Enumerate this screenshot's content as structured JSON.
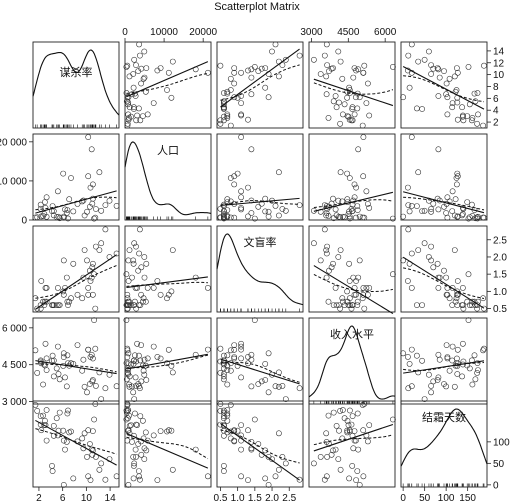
{
  "chart_data": {
    "type": "scatter",
    "title": "Scatterplot Matrix",
    "variables": [
      {
        "name": "谋杀率",
        "ticks": [
          2,
          6,
          10,
          14
        ],
        "tick_side": "bottom",
        "right_ticks": [
          2,
          4,
          6,
          8,
          10,
          12,
          14
        ]
      },
      {
        "name": "人口",
        "ticks": [
          0,
          10000,
          20000
        ],
        "tick_labels": [
          "0",
          "10000",
          "20000"
        ],
        "left_ticks": [
          0,
          10000,
          20000
        ],
        "left_tick_labels": [
          "0",
          "10 000",
          "20 000"
        ]
      },
      {
        "name": "文盲率",
        "ticks": [
          0.5,
          1.5,
          2.5
        ],
        "right_ticks": [
          0.5,
          1.0,
          1.5,
          2.0,
          2.5
        ],
        "right_tick_labels": [
          "0.5",
          "1.0",
          "1.5",
          "2.0",
          "2.5"
        ],
        "bottom_ticks": [
          0.5,
          1.0,
          1.5,
          2.0,
          2.5
        ],
        "bottom_tick_labels": [
          "0.5",
          "1.0",
          "1.5",
          "2.0",
          "2.5"
        ]
      },
      {
        "name": "收入水平",
        "ticks": [
          3000,
          4500,
          6000
        ],
        "tick_labels": [
          "3000",
          "4500",
          "6000"
        ],
        "left_tick_labels": [
          "3 000",
          "4 500",
          "6 000"
        ]
      },
      {
        "name": "结霜天数",
        "ticks": [
          0,
          50,
          100,
          150
        ],
        "right_ticks": [
          0,
          50,
          100
        ],
        "bottom_ticks": [
          0,
          50,
          100,
          150
        ]
      }
    ],
    "ranges": [
      [
        1.0,
        15.5
      ],
      [
        0,
        22000
      ],
      [
        0.4,
        2.9
      ],
      [
        2900,
        6400
      ],
      [
        -5,
        195
      ]
    ],
    "murder": [
      15.1,
      11.3,
      7.8,
      10.1,
      10.3,
      6.8,
      3.1,
      6.2,
      10.7,
      13.9,
      6.2,
      5.3,
      10.3,
      7.1,
      2.3,
      4.5,
      10.6,
      13.2,
      2.7,
      8.5,
      3.3,
      11.1,
      2.3,
      12.5,
      9.3,
      5.0,
      2.9,
      11.5,
      3.3,
      5.2,
      9.7,
      10.9,
      11.1,
      1.4,
      7.4,
      6.4,
      4.2,
      6.1,
      2.4,
      11.6,
      1.7,
      11.0,
      12.2,
      4.5,
      5.5,
      9.5,
      4.3,
      6.7,
      3.0,
      6.9
    ],
    "population": [
      3615,
      365,
      2212,
      2110,
      21198,
      2541,
      3100,
      579,
      8277,
      4931,
      868,
      813,
      11197,
      5313,
      2861,
      2280,
      3387,
      3806,
      1058,
      4122,
      5814,
      9111,
      3921,
      2341,
      4767,
      746,
      1544,
      590,
      812,
      7333,
      1144,
      18076,
      5441,
      637,
      10735,
      2715,
      2284,
      11860,
      931,
      2816,
      681,
      4173,
      12237,
      1203,
      472,
      4981,
      3559,
      1799,
      4589,
      376
    ],
    "illiteracy": [
      2.1,
      1.5,
      1.8,
      1.9,
      1.1,
      0.7,
      1.1,
      0.9,
      1.3,
      2.0,
      1.9,
      0.6,
      0.9,
      0.7,
      0.5,
      0.6,
      1.6,
      2.8,
      0.7,
      0.9,
      1.1,
      0.9,
      0.6,
      2.4,
      0.8,
      0.6,
      0.6,
      0.5,
      0.7,
      1.1,
      2.2,
      1.4,
      1.8,
      0.8,
      0.8,
      1.1,
      0.6,
      1.0,
      1.3,
      2.3,
      0.5,
      1.7,
      2.2,
      0.6,
      0.6,
      1.4,
      0.6,
      1.4,
      0.7,
      0.6
    ],
    "income": [
      3624,
      6315,
      4530,
      3378,
      5114,
      4884,
      5348,
      4809,
      4815,
      4091,
      4963,
      4119,
      5107,
      4458,
      4628,
      4669,
      3712,
      3545,
      3694,
      5299,
      4755,
      4751,
      4675,
      3098,
      4254,
      4347,
      4508,
      5149,
      4281,
      5237,
      3601,
      4903,
      3875,
      5087,
      4561,
      3983,
      4660,
      4449,
      4558,
      3635,
      4167,
      3821,
      4188,
      4022,
      3907,
      4701,
      4864,
      3617,
      4468,
      4566
    ],
    "frost": [
      20,
      152,
      15,
      65,
      20,
      166,
      139,
      103,
      11,
      60,
      0,
      126,
      127,
      122,
      140,
      114,
      95,
      12,
      161,
      101,
      103,
      125,
      160,
      50,
      108,
      155,
      139,
      188,
      174,
      115,
      120,
      82,
      80,
      186,
      124,
      82,
      44,
      126,
      127,
      65,
      172,
      70,
      35,
      137,
      168,
      85,
      32,
      100,
      149,
      173
    ]
  }
}
